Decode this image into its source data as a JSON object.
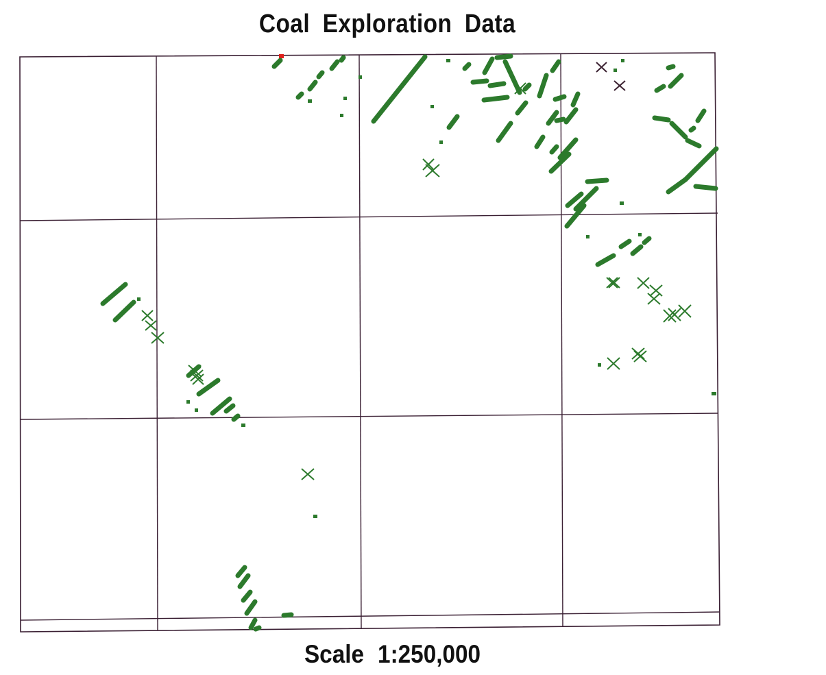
{
  "map": {
    "title": "Coal Exploration Data",
    "scale_label": "Scale 1:250,000"
  },
  "colors": {
    "seam": "#2c7a2c",
    "grid": "#3a1f33",
    "dark_marker": "#3a2030",
    "red_marker": "#e0201c",
    "background": "#ffffff"
  },
  "legend_symbols": {
    "outcrop": "green-segment",
    "borehole": "x-marker"
  }
}
